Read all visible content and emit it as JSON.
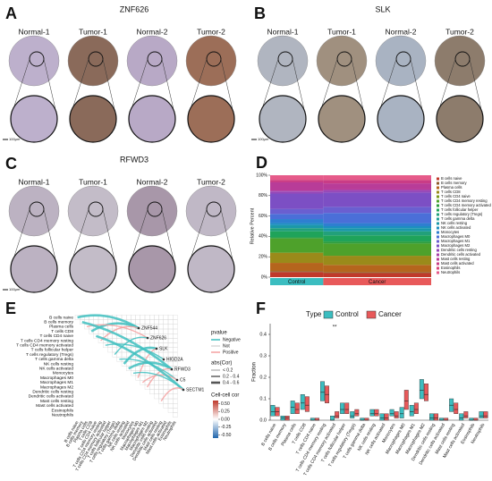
{
  "panels": {
    "A": {
      "letter": "A",
      "gene": "ZNF626",
      "samples": [
        "Normal-1",
        "Tumor-1",
        "Normal-2",
        "Tumor-2"
      ]
    },
    "B": {
      "letter": "B",
      "gene": "SLK",
      "samples": [
        "Normal-1",
        "Tumor-1",
        "Normal-2",
        "Tumor-2"
      ]
    },
    "C": {
      "letter": "C",
      "gene": "RFWD3",
      "samples": [
        "Normal-1",
        "Tumor-1",
        "Normal-2",
        "Tumor-2"
      ]
    }
  },
  "scale_bar": "100μm",
  "network": {
    "letter": "E",
    "cells": [
      "B cells naive",
      "B cells memory",
      "Plasma cells",
      "T cells CD8",
      "T cells CD4 naive",
      "T cells CD4 memory resting",
      "T cells CD4 memory activated",
      "T cells follicular helper",
      "T cells regulatory (Tregs)",
      "T cells gamma delta",
      "NK cells resting",
      "NK cells activated",
      "Monocytes",
      "Macrophages M0",
      "Macrophages M1",
      "Macrophages M2",
      "Dendritic cells resting",
      "Dendritic cells activated",
      "Mast cells resting",
      "Mast cells activated",
      "Eosinophils",
      "Neutrophils"
    ],
    "genes": [
      "ZNF544",
      "ZNF626",
      "SLK",
      "HIGD2A",
      "RFWD3",
      "C5",
      "SECTM1"
    ],
    "pvalue_title": "pvalue",
    "pvalue": [
      {
        "name": "Negative",
        "color": "#3fbfbf"
      },
      {
        "name": "Not",
        "color": "#d9d9d9"
      },
      {
        "name": "Positive",
        "color": "#f4a0a0"
      }
    ],
    "abscor_title": "abs(Cor)",
    "abscor": [
      "< 0.2",
      "0.2 - 0.4",
      "0.4 - 0.6"
    ],
    "links": [
      [
        0,
        0,
        0,
        2
      ],
      [
        0,
        3,
        0,
        2
      ],
      [
        0,
        5,
        2,
        1
      ],
      [
        1,
        2,
        2,
        1
      ],
      [
        1,
        8,
        0,
        1
      ],
      [
        2,
        10,
        0,
        2
      ],
      [
        2,
        13,
        2,
        1
      ],
      [
        3,
        6,
        0,
        1
      ],
      [
        4,
        1,
        0,
        2
      ],
      [
        4,
        11,
        0,
        2
      ],
      [
        4,
        15,
        2,
        1
      ],
      [
        5,
        9,
        0,
        1
      ],
      [
        5,
        14,
        2,
        1
      ],
      [
        6,
        4,
        0,
        2
      ],
      [
        6,
        12,
        0,
        1
      ],
      [
        6,
        18,
        2,
        1
      ]
    ],
    "colorbar_title": "Cell-cell cor",
    "clim": [
      -0.6,
      0.6
    ],
    "colorbar_ticks": [
      {
        "value": 0.5,
        "label": "0.50"
      },
      {
        "value": 0.25,
        "label": "0.25"
      },
      {
        "value": 0,
        "label": "0.00"
      },
      {
        "value": -0.25,
        "label": "-0.25"
      },
      {
        "value": -0.5,
        "label": "-0.50"
      }
    ]
  },
  "chart_data": [
    {
      "type": "stacked_bar",
      "letter": "D",
      "y_label": "Relative Percent",
      "categories": [
        "Control",
        "Cancer"
      ],
      "category_colors": [
        "#3bbdc0",
        "#e8595a"
      ],
      "ylim": [
        0,
        100
      ],
      "yticks": [
        {
          "value": 0,
          "label": "0%"
        },
        {
          "value": 20,
          "label": "20%"
        },
        {
          "value": 40,
          "label": "40%"
        },
        {
          "value": 60,
          "label": "60%"
        },
        {
          "value": 80,
          "label": "80%"
        },
        {
          "value": 100,
          "label": "100%"
        }
      ],
      "series": [
        {
          "name": "B cells naive",
          "color": "#c0392b",
          "values": [
            5,
            4
          ]
        },
        {
          "name": "B cells memory",
          "color": "#8e5a2b",
          "values": [
            1,
            1
          ]
        },
        {
          "name": "Plasma cells",
          "color": "#b5651d",
          "values": [
            8,
            7
          ]
        },
        {
          "name": "T cells CD8",
          "color": "#9a8a1a",
          "values": [
            10,
            9
          ]
        },
        {
          "name": "T cells CD4 naive",
          "color": "#7a9a1a",
          "values": [
            0,
            0
          ]
        },
        {
          "name": "T cells CD4 memory resting",
          "color": "#4ea12b",
          "values": [
            14,
            12
          ]
        },
        {
          "name": "T cells CD4 memory activated",
          "color": "#2e9e3e",
          "values": [
            1,
            2
          ]
        },
        {
          "name": "T cells follicular helper",
          "color": "#1fa35a",
          "values": [
            6,
            6
          ]
        },
        {
          "name": "T cells regulatory (Tregs)",
          "color": "#22a07a",
          "values": [
            3,
            4
          ]
        },
        {
          "name": "T cells gamma delta",
          "color": "#1f9e94",
          "values": [
            0,
            0
          ]
        },
        {
          "name": "NK cells resting",
          "color": "#1b98a8",
          "values": [
            3,
            3
          ]
        },
        {
          "name": "NK cells activated",
          "color": "#1c8fbf",
          "values": [
            2,
            2
          ]
        },
        {
          "name": "Monocytes",
          "color": "#2e7fd0",
          "values": [
            4,
            3
          ]
        },
        {
          "name": "Macrophages M0",
          "color": "#4a6fd8",
          "values": [
            5,
            10
          ]
        },
        {
          "name": "Macrophages M1",
          "color": "#6a5fd0",
          "values": [
            5,
            6
          ]
        },
        {
          "name": "Macrophages M2",
          "color": "#7c4fc4",
          "values": [
            15,
            14
          ]
        },
        {
          "name": "Dendritic cells resting",
          "color": "#9446b8",
          "values": [
            2,
            2
          ]
        },
        {
          "name": "Dendritic cells activated",
          "color": "#a83fa8",
          "values": [
            1,
            1
          ]
        },
        {
          "name": "Mast cells resting",
          "color": "#b83c98",
          "values": [
            8,
            6
          ]
        },
        {
          "name": "Mast cells activated",
          "color": "#c93c86",
          "values": [
            2,
            3
          ]
        },
        {
          "name": "Eosinophils",
          "color": "#d8427a",
          "values": [
            1,
            1
          ]
        },
        {
          "name": "Neutrophils",
          "color": "#e65b8a",
          "values": [
            4,
            4
          ]
        }
      ]
    },
    {
      "type": "box",
      "letter": "F",
      "y_label": "Fraction",
      "legend_title": "Type",
      "annotation": {
        "text": "**",
        "category": 6
      },
      "categories": [
        "B cells naive",
        "B cells memory",
        "Plasma cells",
        "T cells CD8",
        "T cells CD4 naive",
        "T cells CD4 memory resting",
        "T cells CD4 memory activated",
        "T cells follicular helper",
        "T cells regulatory (Tregs)",
        "T cells gamma delta",
        "NK cells resting",
        "NK cells activated",
        "Monocytes",
        "Macrophages M0",
        "Macrophages M1",
        "Macrophages M2",
        "Dendritic cells resting",
        "Dendritic cells activated",
        "Mast cells resting",
        "Mast cells activated",
        "Eosinophils",
        "Neutrophils"
      ],
      "ylim": [
        0,
        0.45
      ],
      "yticks": [
        {
          "value": 0,
          "label": "0.0"
        },
        0.1,
        0.2,
        0.3,
        0.4
      ],
      "series": [
        {
          "name": "Control",
          "color": "#3bbdc0",
          "q1": [
            0.02,
            0,
            0.03,
            0.05,
            0,
            0.09,
            0,
            0.03,
            0.01,
            0,
            0.02,
            0,
            0.02,
            0.01,
            0.02,
            0.1,
            0,
            0,
            0.04,
            0,
            0,
            0.01
          ],
          "median": [
            0.04,
            0.01,
            0.06,
            0.08,
            0,
            0.13,
            0,
            0.05,
            0.02,
            0,
            0.03,
            0.01,
            0.03,
            0.03,
            0.04,
            0.14,
            0.01,
            0,
            0.07,
            0.01,
            0,
            0.02
          ],
          "q3": [
            0.07,
            0.02,
            0.09,
            0.12,
            0.01,
            0.18,
            0.02,
            0.08,
            0.04,
            0.01,
            0.05,
            0.03,
            0.05,
            0.06,
            0.07,
            0.19,
            0.03,
            0.01,
            0.1,
            0.03,
            0.01,
            0.04
          ]
        },
        {
          "name": "Cancer",
          "color": "#e8595a",
          "q1": [
            0.02,
            0,
            0.03,
            0.04,
            0,
            0.08,
            0.01,
            0.03,
            0.02,
            0,
            0.02,
            0,
            0.01,
            0.05,
            0.03,
            0.09,
            0,
            0,
            0.03,
            0.01,
            0,
            0.01
          ],
          "median": [
            0.04,
            0.01,
            0.05,
            0.07,
            0,
            0.12,
            0.02,
            0.05,
            0.03,
            0,
            0.03,
            0.01,
            0.02,
            0.09,
            0.05,
            0.12,
            0.01,
            0,
            0.05,
            0.02,
            0,
            0.02
          ],
          "q3": [
            0.06,
            0.02,
            0.08,
            0.11,
            0.01,
            0.16,
            0.04,
            0.08,
            0.05,
            0.01,
            0.05,
            0.03,
            0.04,
            0.14,
            0.08,
            0.17,
            0.03,
            0.01,
            0.08,
            0.04,
            0.01,
            0.04
          ]
        }
      ]
    }
  ]
}
